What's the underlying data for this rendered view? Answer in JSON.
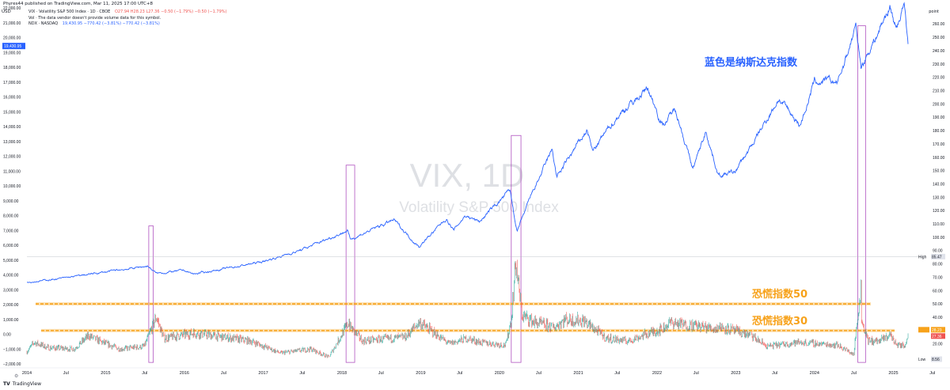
{
  "header": {
    "published_by": "Phyres44 published on TradingView.com, Mar 11, 2025 17:00 UTC+8",
    "currency": "USD",
    "right_unit": "point",
    "vix_line": "VIX · Volatility S&P 500 Index · 1D · CBOE",
    "vix_values": "O27.94 H28.23 L27.36 −0.50 (−1.79%)  −0.50 (−1.79%)",
    "vol_line": "Vol · The data vendor doesn't provide volume data for this symbol.",
    "ndx_line": "NDX · NASDAQ",
    "ndx_values": "19,430.95  −770.42 (−3.81%)  −770.42 (−3.81%)"
  },
  "footer": {
    "logo_text": "TradingView",
    "gear_icon": "gear-icon",
    "tv_icon": "tradingview-logo-icon"
  },
  "colors": {
    "nasdaq": "#2962ff",
    "vix_up": "#26a69a",
    "vix_down": "#ef5350",
    "orange": "#f7a21b",
    "box": "#9c27b0",
    "label_blue": "#2962ff",
    "watermark": "#c3c6ce"
  },
  "chart_data": {
    "type": "line",
    "title": "",
    "watermark_title": "VIX, 1D",
    "watermark_subtitle": "Volatility S&P 500 Index",
    "x_start": "2014-01-01",
    "x_end": "2025-05-15",
    "x_tick_labels": [
      {
        "date": "2014-01-01",
        "label": "2014"
      },
      {
        "date": "2014-07-01",
        "label": "Jul"
      },
      {
        "date": "2015-01-01",
        "label": "2015"
      },
      {
        "date": "2015-07-01",
        "label": "Jul"
      },
      {
        "date": "2016-01-01",
        "label": "2016"
      },
      {
        "date": "2016-07-01",
        "label": "Jul"
      },
      {
        "date": "2017-01-01",
        "label": "2017"
      },
      {
        "date": "2017-07-01",
        "label": "Jul"
      },
      {
        "date": "2018-01-01",
        "label": "2018"
      },
      {
        "date": "2018-07-01",
        "label": "Jul"
      },
      {
        "date": "2019-01-01",
        "label": "2019"
      },
      {
        "date": "2019-07-01",
        "label": "Jul"
      },
      {
        "date": "2020-01-01",
        "label": "2020"
      },
      {
        "date": "2020-07-01",
        "label": "Jul"
      },
      {
        "date": "2021-01-01",
        "label": "2021"
      },
      {
        "date": "2021-07-01",
        "label": "Jul"
      },
      {
        "date": "2022-01-01",
        "label": "2022"
      },
      {
        "date": "2022-07-01",
        "label": "Jul"
      },
      {
        "date": "2023-01-01",
        "label": "2023"
      },
      {
        "date": "2023-07-01",
        "label": "Jul"
      },
      {
        "date": "2024-01-01",
        "label": "2024"
      },
      {
        "date": "2024-07-01",
        "label": "Jul"
      },
      {
        "date": "2025-01-01",
        "label": "2025"
      },
      {
        "date": "2025-07-01",
        "label": "Jul"
      }
    ],
    "left_axis": {
      "min": -2000,
      "max": 22000,
      "ticks": [
        -2000,
        -1000,
        0,
        1000,
        2000,
        3000,
        4000,
        5000,
        6000,
        7000,
        8000,
        9000,
        10000,
        11000,
        12000,
        13000,
        14000,
        15000,
        16000,
        17000,
        18000,
        19000,
        20000,
        21000,
        22000
      ],
      "tick_labels": [
        "−2,000.00",
        "−1,000.00",
        "0.00",
        "1,000.00",
        "2,000.00",
        "3,000.00",
        "4,000.00",
        "5,000.00",
        "6,000.00",
        "7,000.00",
        "8,000.00",
        "9,000.00",
        "10,000.00",
        "11,000.00",
        "12,000.00",
        "13,000.00",
        "14,000.00",
        "15,000.00",
        "16,000.00",
        "17,000.00",
        "18,000.00",
        "19,000.00",
        "20,000.00",
        "21,000.00",
        "22,000.00"
      ],
      "current_label": "19,430.95",
      "current_value": 19430.95
    },
    "right_axis": {
      "min": 5,
      "max": 272,
      "ticks": [
        20,
        30,
        40,
        50,
        60,
        70,
        80,
        90,
        100,
        110,
        120,
        130,
        140,
        150,
        160,
        170,
        180,
        190,
        200,
        210,
        220,
        230,
        240,
        250,
        260
      ],
      "tick_labels": [
        "20.00",
        "30.00",
        "40.00",
        "50.00",
        "60.00",
        "70.00",
        "80.00",
        "90.00",
        "100.00",
        "110.00",
        "120.00",
        "130.00",
        "140.00",
        "150.00",
        "160.00",
        "170.00",
        "180.00",
        "190.00",
        "200.00",
        "210.00",
        "220.00",
        "230.00",
        "240.00",
        "250.00",
        "260.00"
      ],
      "high_label": "High",
      "high_value": 85.47,
      "low_label": "Low",
      "low_value": 8.56,
      "current_label": "27.36",
      "current_value": 27.36,
      "prev_label": "28.23"
    },
    "series": [
      {
        "name": "NDX",
        "x": [
          "2014-01-01",
          "2014-07-01",
          "2015-01-01",
          "2015-07-15",
          "2015-08-24",
          "2016-01-01",
          "2016-02-11",
          "2016-07-01",
          "2017-01-01",
          "2017-07-01",
          "2018-01-26",
          "2018-02-08",
          "2018-08-29",
          "2018-12-24",
          "2019-04-30",
          "2019-06-03",
          "2019-07-26",
          "2019-10-01",
          "2020-02-19",
          "2020-03-23",
          "2020-06-01",
          "2020-09-02",
          "2020-09-23",
          "2021-02-12",
          "2021-03-08",
          "2021-07-01",
          "2021-11-19",
          "2022-01-27",
          "2022-03-29",
          "2022-06-16",
          "2022-08-16",
          "2022-10-13",
          "2022-12-28",
          "2023-04-01",
          "2023-07-19",
          "2023-10-26",
          "2024-01-01",
          "2024-04-19",
          "2024-07-10",
          "2024-08-05",
          "2024-09-06",
          "2024-12-16",
          "2025-01-13",
          "2025-02-19",
          "2025-03-10"
        ],
        "values": [
          3500,
          3800,
          4200,
          4600,
          4100,
          4300,
          4050,
          4400,
          4900,
          5700,
          7000,
          6400,
          7700,
          5900,
          7800,
          7000,
          8000,
          7600,
          9700,
          6900,
          9500,
          12400,
          10600,
          13800,
          12300,
          14700,
          16600,
          14100,
          15200,
          11100,
          13700,
          10700,
          10900,
          13100,
          15900,
          14100,
          17000,
          17000,
          20700,
          18000,
          19000,
          22100,
          20600,
          22300,
          19430
        ]
      },
      {
        "name": "VIX",
        "x": [
          "2014-01-01",
          "2014-02-03",
          "2014-04-11",
          "2014-08-07",
          "2014-10-15",
          "2014-12-16",
          "2015-03-10",
          "2015-06-29",
          "2015-08-24",
          "2015-09-28",
          "2016-01-20",
          "2016-02-11",
          "2016-06-27",
          "2016-11-04",
          "2017-03-22",
          "2017-08-10",
          "2017-11-01",
          "2018-02-05",
          "2018-02-06",
          "2018-04-06",
          "2018-10-24",
          "2018-12-24",
          "2019-05-13",
          "2019-08-05",
          "2019-10-02",
          "2020-01-31",
          "2020-02-27",
          "2020-03-16",
          "2020-04-15",
          "2020-06-11",
          "2020-09-08",
          "2020-10-30",
          "2021-01-27",
          "2021-05-12",
          "2021-08-19",
          "2021-11-30",
          "2022-01-24",
          "2022-03-07",
          "2022-05-09",
          "2022-06-13",
          "2022-09-30",
          "2022-10-13",
          "2023-03-13",
          "2023-05-26",
          "2023-10-20",
          "2024-04-19",
          "2024-07-01",
          "2024-08-05",
          "2024-08-06",
          "2024-09-06",
          "2024-11-01",
          "2024-12-18",
          "2025-01-10",
          "2025-02-21",
          "2025-03-10"
        ],
        "values": [
          14,
          21,
          17,
          16,
          26,
          21,
          16,
          18,
          40,
          24,
          27,
          28,
          25,
          22,
          13,
          16,
          10,
          37,
          33,
          22,
          25,
          36,
          20,
          24,
          21,
          19,
          40,
          82,
          41,
          36,
          32,
          38,
          37,
          24,
          22,
          28,
          31,
          36,
          34,
          34,
          31,
          33,
          26,
          18,
          21,
          19,
          12,
          65,
          38,
          22,
          22,
          27,
          20,
          18,
          27.36
        ]
      }
    ],
    "reference_levels": [
      {
        "value": 50,
        "label": "恐慌指数50",
        "color": "#f7a21b"
      },
      {
        "value": 30,
        "label": "恐慌指数30",
        "color": "#f7a21b"
      }
    ],
    "annotation": "蓝色是纳斯达克指数",
    "highlight_boxes": [
      {
        "x_start": "2015-07-20",
        "x_end": "2015-08-10",
        "y_start": -1900,
        "y_end": 7300
      },
      {
        "x_start": "2018-01-20",
        "x_end": "2018-03-01",
        "y_start": -1900,
        "y_end": 11400
      },
      {
        "x_start": "2020-02-25",
        "x_end": "2020-04-10",
        "y_start": -1900,
        "y_end": 13400
      },
      {
        "x_start": "2024-07-20",
        "x_end": "2024-08-25",
        "y_start": -1900,
        "y_end": 20800
      }
    ],
    "grid": false,
    "legend": "top-left"
  }
}
